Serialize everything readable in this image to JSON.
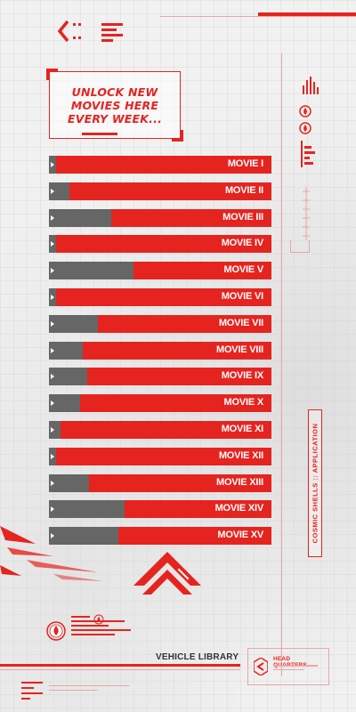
{
  "header": {
    "back_icon": "chevron-left-icon",
    "headline": "UNLOCK NEW MOVIES HERE EVERY WEEK..."
  },
  "movies": [
    {
      "label": "MOVIE I",
      "progress": 0.03
    },
    {
      "label": "MOVIE II",
      "progress": 0.09
    },
    {
      "label": "MOVIE III",
      "progress": 0.28
    },
    {
      "label": "MOVIE IV",
      "progress": 0.03
    },
    {
      "label": "MOVIE V",
      "progress": 0.38
    },
    {
      "label": "MOVIE VI",
      "progress": 0.03
    },
    {
      "label": "MOVIE VII",
      "progress": 0.22
    },
    {
      "label": "MOVIE VIII",
      "progress": 0.15
    },
    {
      "label": "MOVIE IX",
      "progress": 0.17
    },
    {
      "label": "MOVIE X",
      "progress": 0.14
    },
    {
      "label": "MOVIE XI",
      "progress": 0.05
    },
    {
      "label": "MOVIE XII",
      "progress": 0.03
    },
    {
      "label": "MOVIE XIII",
      "progress": 0.18
    },
    {
      "label": "MOVIE XIV",
      "progress": 0.34
    },
    {
      "label": "MOVIE XV",
      "progress": 0.31
    }
  ],
  "side_tab": {
    "text": "COSMIC SHELLS  ::  APPLICATION"
  },
  "footer": {
    "vehicle_library": "VEHICLE LIBRARY",
    "head_quarters": "HEAD QUARTERS...",
    "hq_icon": "hq-logo-icon",
    "up_icon": "chevron-up-icon",
    "flame_icon": "flame-icon"
  },
  "colors": {
    "accent": "#e52420",
    "locked": "#666666",
    "background": "#f1f1f1"
  }
}
